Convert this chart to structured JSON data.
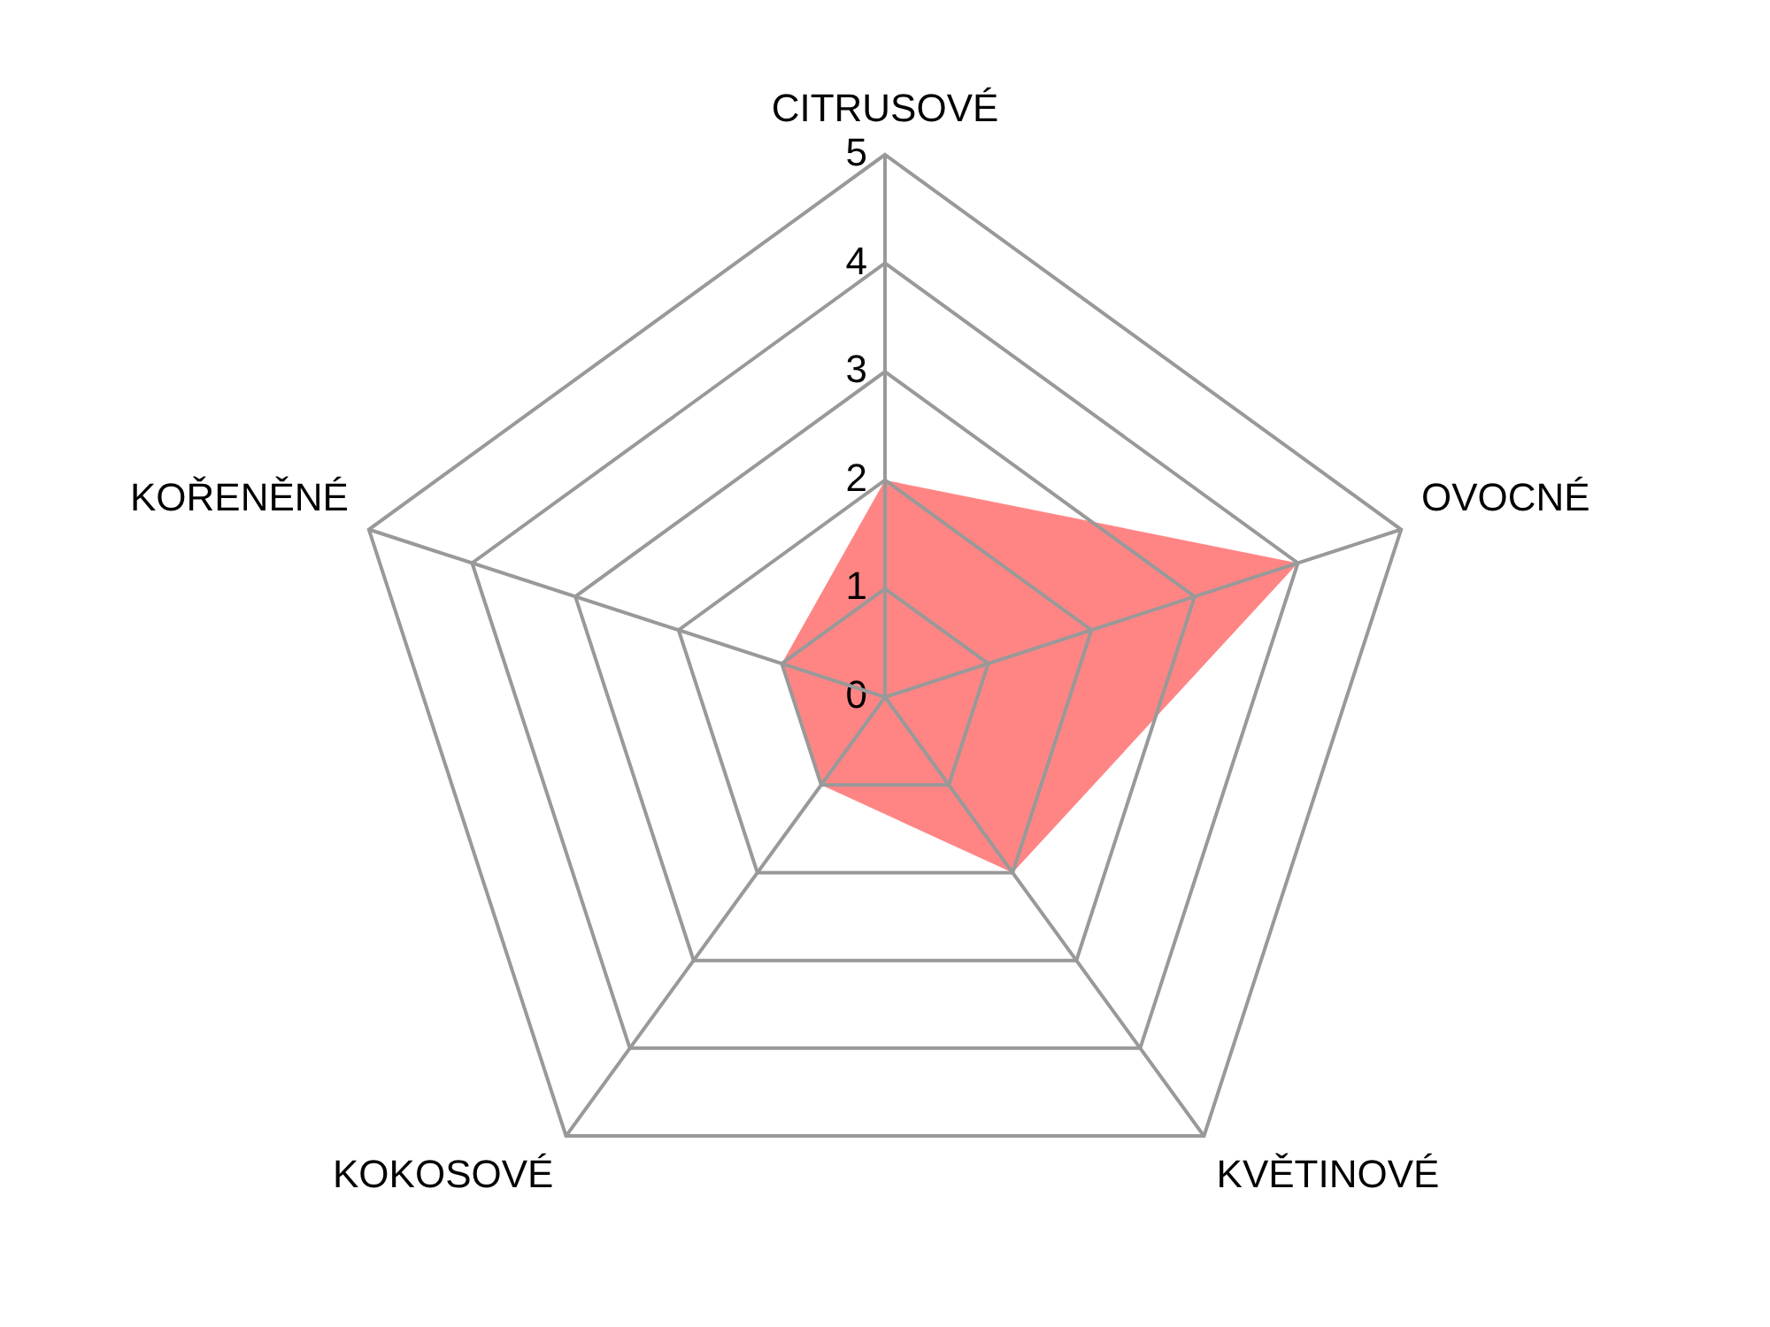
{
  "chart_data": {
    "type": "radar",
    "categories": [
      "CITRUSOVÉ",
      "OVOCNÉ",
      "KVĚTINOVÉ",
      "KOKOSOVÉ",
      "KOŘENĚNÉ"
    ],
    "series": [
      {
        "color": "#ff0000",
        "values": [
          2,
          4,
          2,
          1,
          1
        ]
      }
    ],
    "ylim": [
      0,
      5
    ],
    "yticks": [
      0,
      1,
      2,
      3,
      4,
      5
    ],
    "grid": true,
    "legend": false,
    "marker": "none"
  }
}
